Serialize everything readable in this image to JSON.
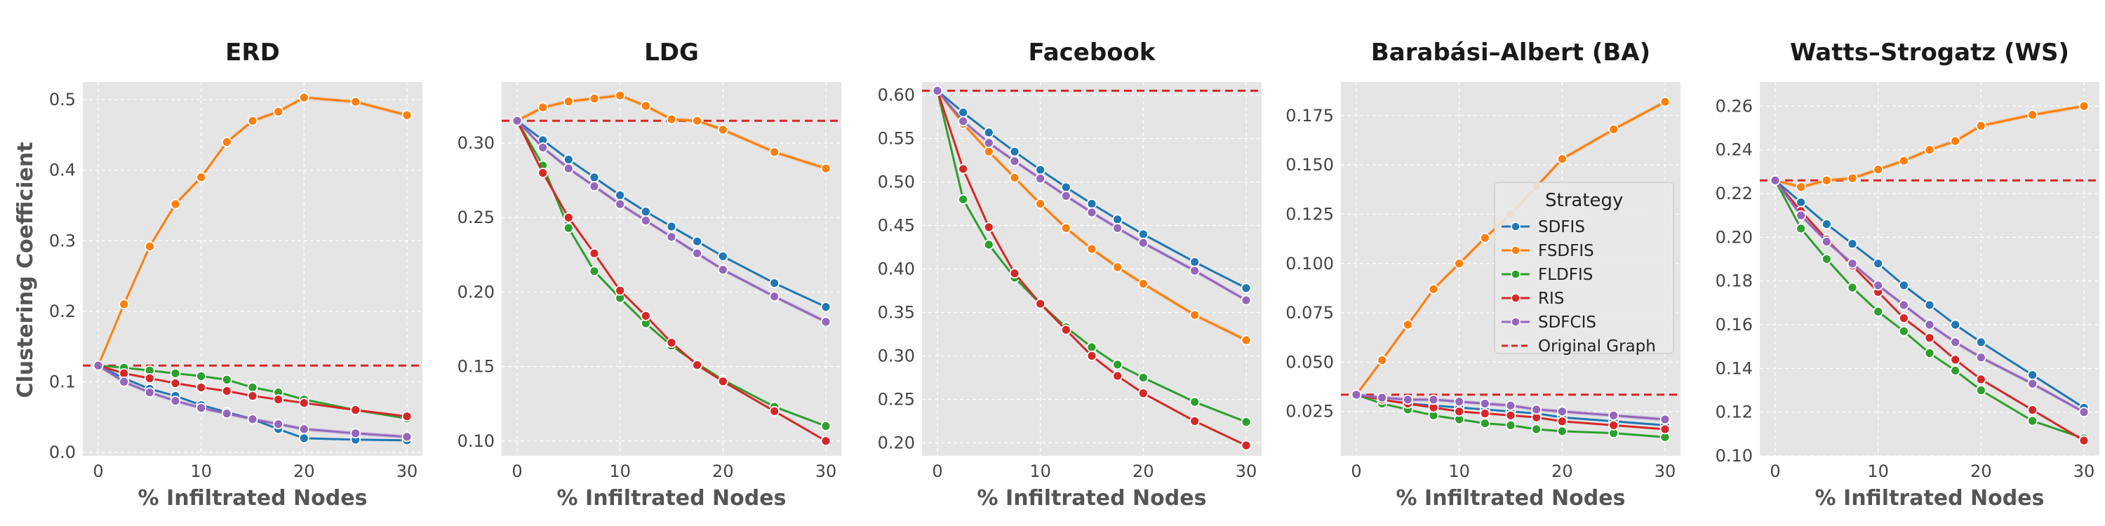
{
  "figure": {
    "y_axis_label": "Clustering Coefficient",
    "legend": {
      "title": "Strategy",
      "entries": [
        "SDFIS",
        "FSDFIS",
        "FLDFIS",
        "RIS",
        "SDFCIS",
        "Original Graph"
      ]
    }
  },
  "colors": {
    "SDFIS": "#1f77b4",
    "FSDFIS": "#ff7f0e",
    "FLDFIS": "#2ca02c",
    "RIS": "#d62728",
    "SDFCIS": "#9467bd",
    "Original Graph": "#d62728",
    "panel_bg": "#e5e5e5",
    "grid": "#ffffff"
  },
  "chart_data": [
    {
      "type": "line",
      "title": "ERD",
      "xlabel": "% Infiltrated Nodes",
      "ylabel": "Clustering Coefficient",
      "xlim": [
        -1.5,
        31.5
      ],
      "ylim": [
        -0.005,
        0.525
      ],
      "xticks": [
        0,
        10,
        20,
        30
      ],
      "yticks": [
        0.0,
        0.1,
        0.2,
        0.3,
        0.4,
        0.5
      ],
      "ytick_labels": [
        "0.0",
        "0.1",
        "0.2",
        "0.3",
        "0.4",
        "0.5"
      ],
      "baseline": 0.123,
      "x": [
        0,
        2.5,
        5,
        7.5,
        10,
        12.5,
        15,
        17.5,
        20,
        25,
        30
      ],
      "series": [
        {
          "name": "SDFIS",
          "values": [
            0.123,
            0.105,
            0.09,
            0.08,
            0.067,
            0.057,
            0.047,
            0.033,
            0.02,
            0.018,
            0.017
          ]
        },
        {
          "name": "FSDFIS",
          "values": [
            0.123,
            0.21,
            0.292,
            0.352,
            0.39,
            0.44,
            0.47,
            0.483,
            0.503,
            0.497,
            0.478
          ]
        },
        {
          "name": "FLDFIS",
          "values": [
            0.123,
            0.12,
            0.116,
            0.112,
            0.108,
            0.103,
            0.092,
            0.085,
            0.075,
            0.06,
            0.048
          ]
        },
        {
          "name": "RIS",
          "values": [
            0.123,
            0.112,
            0.105,
            0.098,
            0.092,
            0.087,
            0.08,
            0.075,
            0.07,
            0.06,
            0.051
          ]
        },
        {
          "name": "SDFCIS",
          "values": [
            0.123,
            0.1,
            0.085,
            0.073,
            0.063,
            0.055,
            0.047,
            0.04,
            0.033,
            0.027,
            0.022
          ]
        }
      ]
    },
    {
      "type": "line",
      "title": "LDG",
      "xlabel": "% Infiltrated Nodes",
      "ylabel": "",
      "xlim": [
        -1.5,
        31.5
      ],
      "ylim": [
        0.09,
        0.341
      ],
      "xticks": [
        0,
        10,
        20,
        30
      ],
      "yticks": [
        0.1,
        0.15,
        0.2,
        0.25,
        0.3
      ],
      "ytick_labels": [
        "0.10",
        "0.15",
        "0.20",
        "0.25",
        "0.30"
      ],
      "baseline": 0.315,
      "x": [
        0,
        2.5,
        5,
        7.5,
        10,
        12.5,
        15,
        17.5,
        20,
        25,
        30
      ],
      "series": [
        {
          "name": "SDFIS",
          "values": [
            0.315,
            0.302,
            0.289,
            0.277,
            0.265,
            0.254,
            0.244,
            0.234,
            0.224,
            0.206,
            0.19
          ]
        },
        {
          "name": "FSDFIS",
          "values": [
            0.315,
            0.324,
            0.328,
            0.33,
            0.332,
            0.325,
            0.316,
            0.315,
            0.309,
            0.294,
            0.283
          ]
        },
        {
          "name": "FLDFIS",
          "values": [
            0.315,
            0.285,
            0.243,
            0.214,
            0.196,
            0.179,
            0.164,
            0.152,
            0.141,
            0.123,
            0.11
          ]
        },
        {
          "name": "RIS",
          "values": [
            0.315,
            0.28,
            0.25,
            0.226,
            0.201,
            0.184,
            0.166,
            0.151,
            0.14,
            0.12,
            0.1
          ]
        },
        {
          "name": "SDFCIS",
          "values": [
            0.315,
            0.297,
            0.283,
            0.271,
            0.259,
            0.248,
            0.237,
            0.226,
            0.215,
            0.197,
            0.18
          ]
        }
      ]
    },
    {
      "type": "line",
      "title": "Facebook",
      "xlabel": "% Infiltrated Nodes",
      "ylabel": "",
      "xlim": [
        -1.5,
        31.5
      ],
      "ylim": [
        0.185,
        0.615
      ],
      "xticks": [
        0,
        10,
        20,
        30
      ],
      "yticks": [
        0.2,
        0.25,
        0.3,
        0.35,
        0.4,
        0.45,
        0.5,
        0.55,
        0.6
      ],
      "ytick_labels": [
        "0.20",
        "0.25",
        "0.30",
        "0.35",
        "0.40",
        "0.45",
        "0.50",
        "0.55",
        "0.60"
      ],
      "baseline": 0.605,
      "x": [
        0,
        2.5,
        5,
        7.5,
        10,
        12.5,
        15,
        17.5,
        20,
        25,
        30
      ],
      "series": [
        {
          "name": "SDFIS",
          "values": [
            0.605,
            0.58,
            0.557,
            0.535,
            0.514,
            0.494,
            0.475,
            0.457,
            0.44,
            0.408,
            0.378
          ]
        },
        {
          "name": "FSDFIS",
          "values": [
            0.605,
            0.567,
            0.535,
            0.505,
            0.475,
            0.447,
            0.423,
            0.402,
            0.383,
            0.347,
            0.318
          ]
        },
        {
          "name": "FLDFIS",
          "values": [
            0.605,
            0.48,
            0.428,
            0.39,
            0.36,
            0.333,
            0.31,
            0.29,
            0.275,
            0.247,
            0.224
          ]
        },
        {
          "name": "RIS",
          "values": [
            0.605,
            0.515,
            0.448,
            0.395,
            0.36,
            0.33,
            0.3,
            0.277,
            0.257,
            0.225,
            0.197
          ]
        },
        {
          "name": "SDFCIS",
          "values": [
            0.605,
            0.57,
            0.545,
            0.524,
            0.504,
            0.484,
            0.465,
            0.447,
            0.43,
            0.398,
            0.364
          ]
        }
      ]
    },
    {
      "type": "line",
      "title": "Barabási–Albert (BA)",
      "xlabel": "% Infiltrated Nodes",
      "ylabel": "",
      "xlim": [
        -1.5,
        31.5
      ],
      "ylim": [
        0.0025,
        0.192
      ],
      "xticks": [
        0,
        10,
        20,
        30
      ],
      "yticks": [
        0.025,
        0.05,
        0.075,
        0.1,
        0.125,
        0.15,
        0.175
      ],
      "ytick_labels": [
        "0.025",
        "0.050",
        "0.075",
        "0.100",
        "0.125",
        "0.150",
        "0.175"
      ],
      "baseline": 0.0335,
      "x": [
        0,
        2.5,
        5,
        7.5,
        10,
        12.5,
        15,
        17.5,
        20,
        25,
        30
      ],
      "series": [
        {
          "name": "SDFIS",
          "values": [
            0.0335,
            0.031,
            0.029,
            0.028,
            0.027,
            0.026,
            0.025,
            0.024,
            0.022,
            0.02,
            0.018
          ]
        },
        {
          "name": "FSDFIS",
          "values": [
            0.0335,
            0.051,
            0.069,
            0.087,
            0.1,
            0.113,
            0.125,
            0.139,
            0.153,
            0.168,
            0.182
          ]
        },
        {
          "name": "FLDFIS",
          "values": [
            0.0335,
            0.029,
            0.026,
            0.023,
            0.021,
            0.019,
            0.018,
            0.016,
            0.015,
            0.014,
            0.012
          ]
        },
        {
          "name": "RIS",
          "values": [
            0.0335,
            0.031,
            0.029,
            0.027,
            0.025,
            0.024,
            0.023,
            0.022,
            0.02,
            0.018,
            0.016
          ]
        },
        {
          "name": "SDFCIS",
          "values": [
            0.0335,
            0.032,
            0.031,
            0.031,
            0.03,
            0.029,
            0.028,
            0.026,
            0.025,
            0.023,
            0.021
          ]
        }
      ]
    },
    {
      "type": "line",
      "title": "Watts–Strogatz (WS)",
      "xlabel": "% Infiltrated Nodes",
      "ylabel": "",
      "xlim": [
        -1.5,
        31.5
      ],
      "ylim": [
        0.1,
        0.271
      ],
      "xticks": [
        0,
        10,
        20,
        30
      ],
      "yticks": [
        0.1,
        0.12,
        0.14,
        0.16,
        0.18,
        0.2,
        0.22,
        0.24,
        0.26
      ],
      "ytick_labels": [
        "0.10",
        "0.12",
        "0.14",
        "0.16",
        "0.18",
        "0.20",
        "0.22",
        "0.24",
        "0.26"
      ],
      "baseline": 0.226,
      "x": [
        0,
        2.5,
        5,
        7.5,
        10,
        12.5,
        15,
        17.5,
        20,
        25,
        30
      ],
      "series": [
        {
          "name": "SDFIS",
          "values": [
            0.226,
            0.216,
            0.206,
            0.197,
            0.188,
            0.178,
            0.169,
            0.16,
            0.152,
            0.137,
            0.122
          ]
        },
        {
          "name": "FSDFIS",
          "values": [
            0.226,
            0.223,
            0.226,
            0.227,
            0.231,
            0.235,
            0.24,
            0.244,
            0.251,
            0.256,
            0.26
          ]
        },
        {
          "name": "FLDFIS",
          "values": [
            0.226,
            0.204,
            0.19,
            0.177,
            0.166,
            0.157,
            0.147,
            0.139,
            0.13,
            0.116,
            0.108
          ]
        },
        {
          "name": "RIS",
          "values": [
            0.226,
            0.212,
            0.199,
            0.187,
            0.175,
            0.163,
            0.154,
            0.144,
            0.135,
            0.121,
            0.107
          ]
        },
        {
          "name": "SDFCIS",
          "values": [
            0.226,
            0.21,
            0.198,
            0.188,
            0.178,
            0.169,
            0.16,
            0.152,
            0.145,
            0.133,
            0.12
          ]
        }
      ]
    }
  ]
}
